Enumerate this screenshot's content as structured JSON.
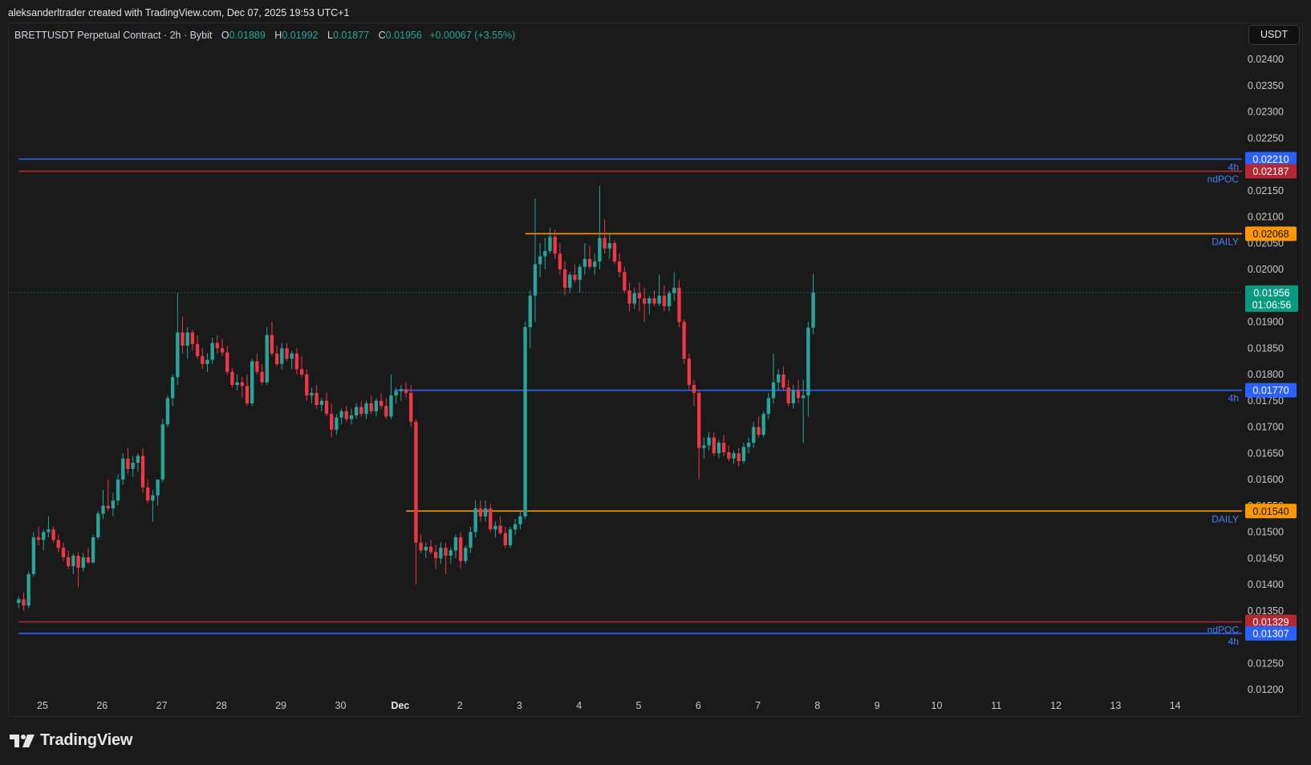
{
  "header": {
    "attribution": "aleksanderltrader created with TradingView.com, Dec 07, 2025 19:53 UTC+1",
    "symbol": "BRETTUSDT Perpetual Contract · 2h · Bybit",
    "ohlc": {
      "o_label": "O",
      "o": "0.01889",
      "h_label": "H",
      "h": "0.01992",
      "l_label": "L",
      "l": "0.01877",
      "c_label": "C",
      "c": "0.01956",
      "change": "+0.00067 (+3.55%)"
    },
    "currency": "USDT"
  },
  "brand": {
    "name": "TradingView",
    "icon": "tradingview-logo-icon"
  },
  "chart_data": {
    "type": "candlestick",
    "symbol": "BRETTUSDT",
    "interval": "2h",
    "exchange": "Bybit",
    "y_axis": {
      "ticks": [
        "0.02400",
        "0.02350",
        "0.02300",
        "0.02250",
        "0.02200",
        "0.02150",
        "0.02100",
        "0.02050",
        "0.02000",
        "0.01950",
        "0.01900",
        "0.01850",
        "0.01800",
        "0.01750",
        "0.01700",
        "0.01650",
        "0.01600",
        "0.01550",
        "0.01500",
        "0.01450",
        "0.01400",
        "0.01350",
        "0.01300",
        "0.01250",
        "0.01200"
      ],
      "ylim": [
        0.0118,
        0.0243
      ]
    },
    "x_axis": {
      "ticks": [
        {
          "label": "25",
          "day": 25
        },
        {
          "label": "26",
          "day": 26
        },
        {
          "label": "27",
          "day": 27
        },
        {
          "label": "28",
          "day": 28
        },
        {
          "label": "29",
          "day": 29
        },
        {
          "label": "30",
          "day": 30
        },
        {
          "label": "Dec",
          "day": 31
        },
        {
          "label": "2",
          "day": 32
        },
        {
          "label": "3",
          "day": 33
        },
        {
          "label": "4",
          "day": 34
        },
        {
          "label": "5",
          "day": 35
        },
        {
          "label": "6",
          "day": 36
        },
        {
          "label": "7",
          "day": 37
        },
        {
          "label": "8",
          "day": 38
        },
        {
          "label": "9",
          "day": 39
        },
        {
          "label": "10",
          "day": 40
        },
        {
          "label": "11",
          "day": 41
        },
        {
          "label": "12",
          "day": 42
        },
        {
          "label": "13",
          "day": 43
        },
        {
          "label": "14",
          "day": 44
        }
      ],
      "bold_labels": [
        "Dec"
      ]
    },
    "levels": [
      {
        "price": 0.0221,
        "label": "0.02210",
        "tag": "4h",
        "color": "#2962ff",
        "start_day": 24.6
      },
      {
        "price": 0.02187,
        "label": "0.02187",
        "tag": "ndPOC",
        "color": "#b22833",
        "start_day": 24.6
      },
      {
        "price": 0.02068,
        "label": "0.02068",
        "tag": "DAILY",
        "color": "#ff9800",
        "start_day": 33.1
      },
      {
        "price": 0.0177,
        "label": "0.01770",
        "tag": "4h",
        "color": "#2962ff",
        "start_day": 30.9
      },
      {
        "price": 0.0154,
        "label": "0.01540",
        "tag": "DAILY",
        "color": "#ff9800",
        "start_day": 31.1
      },
      {
        "price": 0.01329,
        "label": "0.01329",
        "tag": "ndPOC",
        "color": "#b22833",
        "start_day": 24.6
      },
      {
        "price": 0.01307,
        "label": "0.01307",
        "tag": "4h",
        "color": "#2962ff",
        "start_day": 24.6
      }
    ],
    "current_price": {
      "price": 0.01956,
      "label": "0.01956",
      "countdown": "01:06:56",
      "color": "#089981"
    },
    "colors": {
      "up": "#26a69a",
      "down": "#f23645"
    },
    "candles_start_day": 24.6,
    "candle_step_days": 0.0833,
    "candles": [
      [
        0.01365,
        0.01378,
        0.01355,
        0.01372
      ],
      [
        0.01372,
        0.01385,
        0.0135,
        0.0136
      ],
      [
        0.0136,
        0.01425,
        0.01355,
        0.0142
      ],
      [
        0.0142,
        0.015,
        0.01415,
        0.0149
      ],
      [
        0.0149,
        0.0151,
        0.01475,
        0.01485
      ],
      [
        0.01485,
        0.01505,
        0.01465,
        0.015
      ],
      [
        0.015,
        0.0153,
        0.0149,
        0.01505
      ],
      [
        0.01505,
        0.0151,
        0.0148,
        0.01485
      ],
      [
        0.01485,
        0.01495,
        0.01462,
        0.0147
      ],
      [
        0.0147,
        0.0148,
        0.01445,
        0.01452
      ],
      [
        0.01452,
        0.01465,
        0.0143,
        0.01435
      ],
      [
        0.01435,
        0.0146,
        0.0142,
        0.01455
      ],
      [
        0.01455,
        0.01462,
        0.01395,
        0.01432
      ],
      [
        0.01432,
        0.0146,
        0.01425,
        0.01452
      ],
      [
        0.01452,
        0.0147,
        0.0144,
        0.01442
      ],
      [
        0.01442,
        0.01495,
        0.0144,
        0.0149
      ],
      [
        0.0149,
        0.0154,
        0.01485,
        0.01535
      ],
      [
        0.01535,
        0.0158,
        0.01525,
        0.0155
      ],
      [
        0.0155,
        0.016,
        0.0154,
        0.01545
      ],
      [
        0.01545,
        0.01575,
        0.0153,
        0.0156
      ],
      [
        0.0156,
        0.0161,
        0.0155,
        0.016
      ],
      [
        0.016,
        0.0165,
        0.0159,
        0.0164
      ],
      [
        0.0164,
        0.0166,
        0.0161,
        0.0162
      ],
      [
        0.0162,
        0.01645,
        0.01605,
        0.01632
      ],
      [
        0.01632,
        0.0165,
        0.01615,
        0.01645
      ],
      [
        0.01645,
        0.0166,
        0.01575,
        0.01585
      ],
      [
        0.01585,
        0.016,
        0.01555,
        0.0156
      ],
      [
        0.0156,
        0.0158,
        0.0152,
        0.0157
      ],
      [
        0.0157,
        0.016,
        0.0155,
        0.016
      ],
      [
        0.016,
        0.01715,
        0.01595,
        0.01705
      ],
      [
        0.01705,
        0.0176,
        0.017,
        0.01755
      ],
      [
        0.01755,
        0.018,
        0.0174,
        0.01795
      ],
      [
        0.01795,
        0.01955,
        0.0178,
        0.0188
      ],
      [
        0.0188,
        0.0191,
        0.0184,
        0.01855
      ],
      [
        0.01855,
        0.0189,
        0.0183,
        0.0188
      ],
      [
        0.0188,
        0.01885,
        0.01845,
        0.01858
      ],
      [
        0.01858,
        0.01875,
        0.0183,
        0.01835
      ],
      [
        0.01835,
        0.0185,
        0.0181,
        0.0182
      ],
      [
        0.0182,
        0.0184,
        0.01805,
        0.01828
      ],
      [
        0.01828,
        0.0187,
        0.0182,
        0.0186
      ],
      [
        0.0186,
        0.01875,
        0.0184,
        0.0185
      ],
      [
        0.0185,
        0.01868,
        0.01835,
        0.01842
      ],
      [
        0.01842,
        0.01855,
        0.018,
        0.01805
      ],
      [
        0.01805,
        0.01812,
        0.01775,
        0.0178
      ],
      [
        0.0178,
        0.018,
        0.0177,
        0.01785
      ],
      [
        0.01785,
        0.01795,
        0.01755,
        0.01778
      ],
      [
        0.01778,
        0.018,
        0.0174,
        0.01745
      ],
      [
        0.01745,
        0.0183,
        0.0174,
        0.01825
      ],
      [
        0.01825,
        0.0184,
        0.018,
        0.01805
      ],
      [
        0.01805,
        0.0182,
        0.0178,
        0.01785
      ],
      [
        0.01785,
        0.0189,
        0.0178,
        0.01875
      ],
      [
        0.01875,
        0.019,
        0.01835,
        0.0184
      ],
      [
        0.0184,
        0.01855,
        0.01815,
        0.0182
      ],
      [
        0.0182,
        0.0186,
        0.0181,
        0.0185
      ],
      [
        0.0185,
        0.0186,
        0.01825,
        0.0183
      ],
      [
        0.0183,
        0.01845,
        0.0181,
        0.0184
      ],
      [
        0.0184,
        0.0185,
        0.018,
        0.0181
      ],
      [
        0.0181,
        0.01835,
        0.01795,
        0.018
      ],
      [
        0.018,
        0.0181,
        0.0175,
        0.0176
      ],
      [
        0.0176,
        0.01775,
        0.01745,
        0.01765
      ],
      [
        0.01765,
        0.0178,
        0.01735,
        0.01742
      ],
      [
        0.01742,
        0.01755,
        0.0173,
        0.0175
      ],
      [
        0.0175,
        0.01765,
        0.0172,
        0.01725
      ],
      [
        0.01725,
        0.01745,
        0.0168,
        0.01695
      ],
      [
        0.01695,
        0.01725,
        0.01685,
        0.01718
      ],
      [
        0.01718,
        0.01735,
        0.01705,
        0.0173
      ],
      [
        0.0173,
        0.0174,
        0.0171,
        0.01715
      ],
      [
        0.01715,
        0.01735,
        0.01705,
        0.01722
      ],
      [
        0.01722,
        0.01745,
        0.01715,
        0.01738
      ],
      [
        0.01738,
        0.0175,
        0.0172,
        0.01725
      ],
      [
        0.01725,
        0.0175,
        0.01715,
        0.01745
      ],
      [
        0.01745,
        0.0176,
        0.01725,
        0.0173
      ],
      [
        0.0173,
        0.01755,
        0.0172,
        0.0175
      ],
      [
        0.0175,
        0.01765,
        0.01735,
        0.0174
      ],
      [
        0.0174,
        0.01755,
        0.01715,
        0.0172
      ],
      [
        0.0172,
        0.018,
        0.01715,
        0.0176
      ],
      [
        0.0176,
        0.01775,
        0.01745,
        0.01768
      ],
      [
        0.01768,
        0.0178,
        0.0175,
        0.01772
      ],
      [
        0.01772,
        0.01785,
        0.01755,
        0.01765
      ],
      [
        0.01765,
        0.0178,
        0.017,
        0.0171
      ],
      [
        0.0171,
        0.01715,
        0.014,
        0.0148
      ],
      [
        0.0148,
        0.01495,
        0.0146,
        0.01465
      ],
      [
        0.01465,
        0.0148,
        0.0145,
        0.01472
      ],
      [
        0.01472,
        0.01485,
        0.01458,
        0.01462
      ],
      [
        0.01462,
        0.01475,
        0.0143,
        0.0145
      ],
      [
        0.0145,
        0.0148,
        0.0144,
        0.0147
      ],
      [
        0.0147,
        0.0148,
        0.0142,
        0.01455
      ],
      [
        0.01455,
        0.0147,
        0.0144,
        0.01465
      ],
      [
        0.01465,
        0.01495,
        0.0145,
        0.0149
      ],
      [
        0.0149,
        0.015,
        0.0143,
        0.01445
      ],
      [
        0.01445,
        0.01475,
        0.0144,
        0.0147
      ],
      [
        0.0147,
        0.0151,
        0.0146,
        0.015
      ],
      [
        0.015,
        0.0156,
        0.0149,
        0.01545
      ],
      [
        0.01545,
        0.0156,
        0.0152,
        0.0153
      ],
      [
        0.0153,
        0.0156,
        0.0152,
        0.01545
      ],
      [
        0.01545,
        0.01555,
        0.015,
        0.01505
      ],
      [
        0.01505,
        0.0152,
        0.0149,
        0.01512
      ],
      [
        0.01512,
        0.0153,
        0.01495,
        0.01498
      ],
      [
        0.01498,
        0.0151,
        0.0147,
        0.01475
      ],
      [
        0.01475,
        0.0151,
        0.0147,
        0.01505
      ],
      [
        0.01505,
        0.01525,
        0.01495,
        0.01515
      ],
      [
        0.01515,
        0.0154,
        0.01505,
        0.0153
      ],
      [
        0.0153,
        0.019,
        0.01525,
        0.0189
      ],
      [
        0.0189,
        0.0196,
        0.0185,
        0.0195
      ],
      [
        0.0195,
        0.02135,
        0.019,
        0.0201
      ],
      [
        0.0201,
        0.0205,
        0.01985,
        0.02025
      ],
      [
        0.02025,
        0.0206,
        0.02,
        0.02035
      ],
      [
        0.02035,
        0.0208,
        0.0203,
        0.02062
      ],
      [
        0.02062,
        0.02075,
        0.0202,
        0.0203
      ],
      [
        0.0203,
        0.0205,
        0.0199,
        0.02
      ],
      [
        0.02,
        0.02015,
        0.0195,
        0.01965
      ],
      [
        0.01965,
        0.01995,
        0.01955,
        0.0199
      ],
      [
        0.0199,
        0.0201,
        0.01975,
        0.0198
      ],
      [
        0.0198,
        0.0201,
        0.01955,
        0.02005
      ],
      [
        0.02005,
        0.0205,
        0.0199,
        0.0202
      ],
      [
        0.0202,
        0.02045,
        0.02,
        0.02005
      ],
      [
        0.02005,
        0.0203,
        0.0199,
        0.02015
      ],
      [
        0.02015,
        0.0216,
        0.02,
        0.0206
      ],
      [
        0.0206,
        0.02095,
        0.0203,
        0.0204
      ],
      [
        0.0204,
        0.0207,
        0.0202,
        0.0205
      ],
      [
        0.0205,
        0.02055,
        0.0201,
        0.02015
      ],
      [
        0.02015,
        0.0203,
        0.01985,
        0.01995
      ],
      [
        0.01995,
        0.02005,
        0.01955,
        0.0196
      ],
      [
        0.0196,
        0.01975,
        0.0192,
        0.01935
      ],
      [
        0.01935,
        0.01965,
        0.01925,
        0.01955
      ],
      [
        0.01955,
        0.01975,
        0.0192,
        0.01945
      ],
      [
        0.01945,
        0.01965,
        0.019,
        0.01935
      ],
      [
        0.01935,
        0.0195,
        0.01915,
        0.01945
      ],
      [
        0.01945,
        0.0196,
        0.0193,
        0.01935
      ],
      [
        0.01935,
        0.0199,
        0.0193,
        0.0195
      ],
      [
        0.0195,
        0.0197,
        0.0192,
        0.0193
      ],
      [
        0.0193,
        0.0196,
        0.0192,
        0.01955
      ],
      [
        0.01955,
        0.01995,
        0.0194,
        0.01965
      ],
      [
        0.01965,
        0.0198,
        0.0189,
        0.019
      ],
      [
        0.019,
        0.01905,
        0.0182,
        0.0183
      ],
      [
        0.0183,
        0.0184,
        0.0177,
        0.0178
      ],
      [
        0.0178,
        0.0179,
        0.0174,
        0.01765
      ],
      [
        0.01765,
        0.0177,
        0.016,
        0.0166
      ],
      [
        0.0166,
        0.0168,
        0.0164,
        0.01665
      ],
      [
        0.01665,
        0.0169,
        0.01655,
        0.0168
      ],
      [
        0.0168,
        0.0169,
        0.01645,
        0.0165
      ],
      [
        0.0165,
        0.01675,
        0.0164,
        0.0167
      ],
      [
        0.0167,
        0.01685,
        0.01645,
        0.01652
      ],
      [
        0.01652,
        0.01665,
        0.01635,
        0.0164
      ],
      [
        0.0164,
        0.01655,
        0.0163,
        0.0165
      ],
      [
        0.0165,
        0.0166,
        0.01625,
        0.01635
      ],
      [
        0.01635,
        0.0167,
        0.0163,
        0.01662
      ],
      [
        0.01662,
        0.0168,
        0.0165,
        0.0167
      ],
      [
        0.0167,
        0.0171,
        0.0166,
        0.017
      ],
      [
        0.017,
        0.0172,
        0.0168,
        0.01685
      ],
      [
        0.01685,
        0.0173,
        0.0168,
        0.01725
      ],
      [
        0.01725,
        0.01765,
        0.01715,
        0.01755
      ],
      [
        0.01755,
        0.0184,
        0.01745,
        0.01785
      ],
      [
        0.01785,
        0.0181,
        0.0177,
        0.018
      ],
      [
        0.018,
        0.01815,
        0.0177,
        0.01775
      ],
      [
        0.01775,
        0.0179,
        0.0174,
        0.01745
      ],
      [
        0.01745,
        0.0178,
        0.01735,
        0.0177
      ],
      [
        0.0177,
        0.0179,
        0.01745,
        0.01755
      ],
      [
        0.01755,
        0.0179,
        0.0167,
        0.0176
      ],
      [
        0.0176,
        0.019,
        0.0172,
        0.01889
      ],
      [
        0.01889,
        0.01992,
        0.01877,
        0.01956
      ]
    ]
  }
}
